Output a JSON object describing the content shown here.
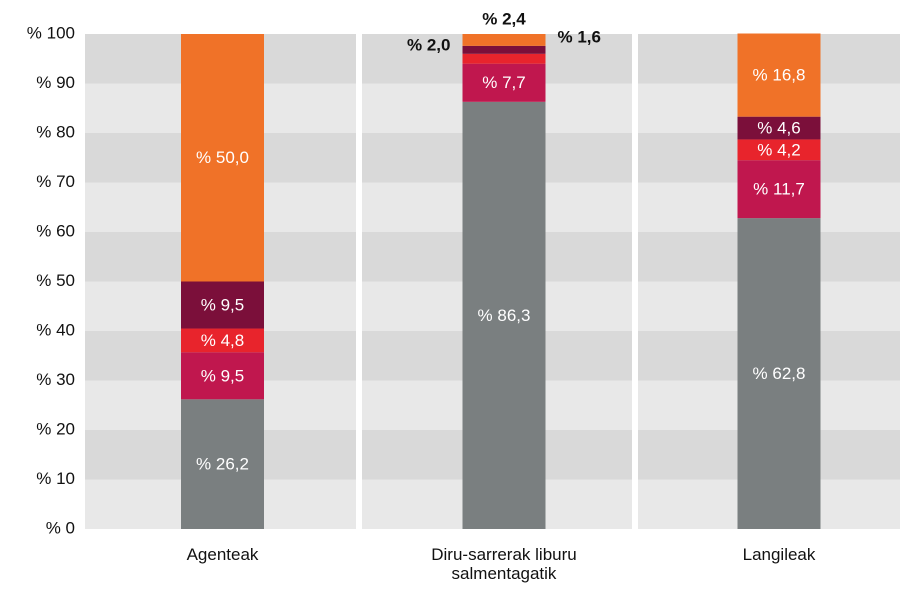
{
  "chart_data": {
    "type": "bar",
    "stacked": true,
    "categories": [
      "Agenteak",
      "Diru-sarrerak liburu salmentagatik",
      "Langileak"
    ],
    "series": [
      {
        "color": "#7a7f80",
        "values": [
          26.2,
          86.3,
          62.8
        ],
        "value_labels": [
          "% 26,2",
          "% 86,3",
          "% 62,8"
        ]
      },
      {
        "color": "#c0174e",
        "values": [
          9.5,
          7.7,
          11.7
        ],
        "value_labels": [
          "% 9,5",
          "% 7,7",
          "% 11,7"
        ]
      },
      {
        "color": "#e8242c",
        "values": [
          4.8,
          2.0,
          4.2
        ],
        "value_labels": [
          "% 4,8",
          "% 2,0",
          "% 4,2"
        ]
      },
      {
        "color": "#7b0f3a",
        "values": [
          9.5,
          1.6,
          4.6
        ],
        "value_labels": [
          "% 9,5",
          "% 1,6",
          "% 4,6"
        ]
      },
      {
        "color": "#f07228",
        "values": [
          50.0,
          2.4,
          16.8
        ],
        "value_labels": [
          "% 50,0",
          "% 2,4",
          "% 16,8"
        ]
      }
    ],
    "ylim": [
      0,
      100
    ],
    "yticks": [
      {
        "value": 0,
        "label": "% 0"
      },
      {
        "value": 10,
        "label": "% 10"
      },
      {
        "value": 20,
        "label": "% 20"
      },
      {
        "value": 30,
        "label": "% 30"
      },
      {
        "value": 40,
        "label": "% 40"
      },
      {
        "value": 50,
        "label": "% 50"
      },
      {
        "value": 60,
        "label": "% 60"
      },
      {
        "value": 70,
        "label": "% 70"
      },
      {
        "value": 80,
        "label": "% 80"
      },
      {
        "value": 90,
        "label": "% 90"
      },
      {
        "value": 100,
        "label": "% 100"
      }
    ],
    "grid": true
  }
}
